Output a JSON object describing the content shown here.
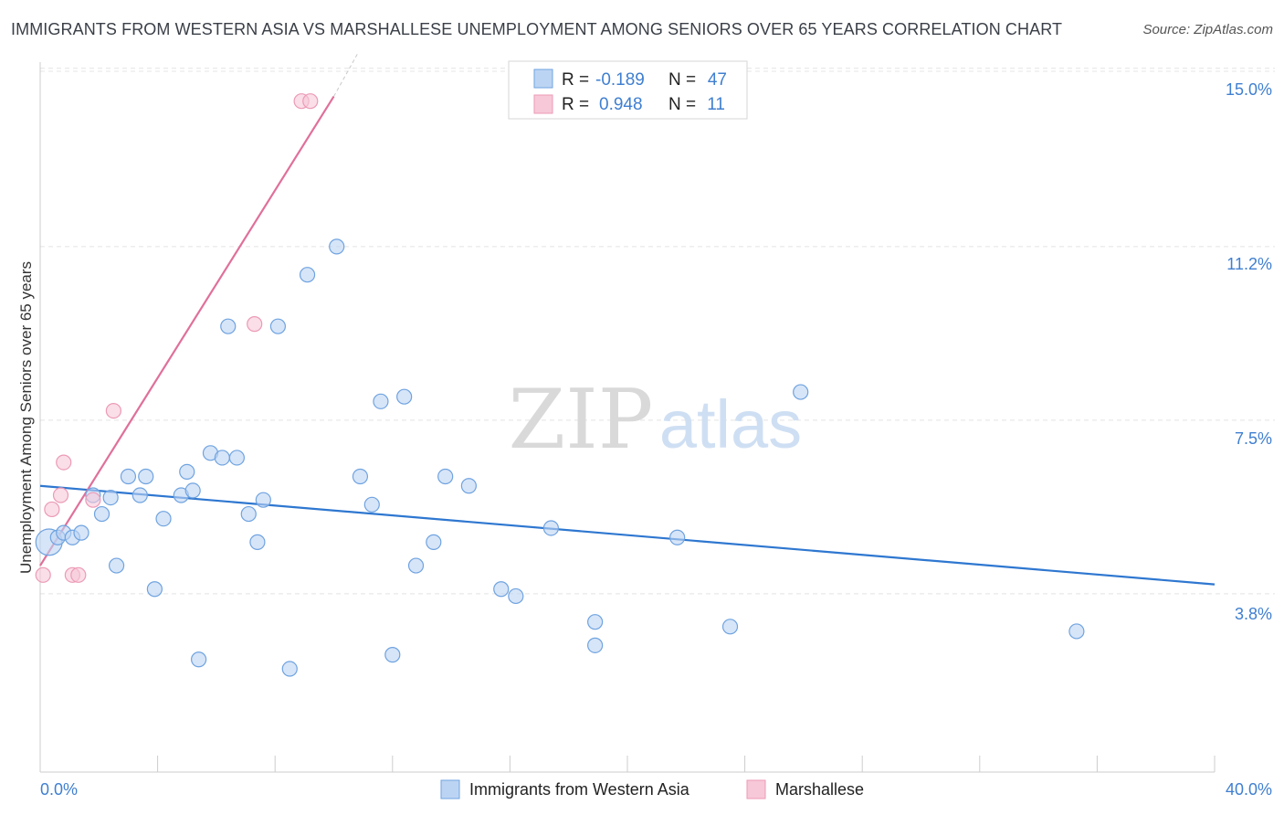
{
  "title": "IMMIGRANTS FROM WESTERN ASIA VS MARSHALLESE UNEMPLOYMENT AMONG SENIORS OVER 65 YEARS CORRELATION CHART",
  "source": "Source: ZipAtlas.com",
  "watermark": {
    "zip": "ZIP",
    "atlas": "atlas"
  },
  "legend": {
    "rows": [
      {
        "r_label": "R =",
        "r_value": "-0.189",
        "n_label": "N =",
        "n_value": "47"
      },
      {
        "r_label": "R =",
        "r_value": "0.948",
        "n_label": "N =",
        "n_value": "11"
      }
    ]
  },
  "chart_data": {
    "type": "scatter",
    "title": "IMMIGRANTS FROM WESTERN ASIA VS MARSHALLESE UNEMPLOYMENT AMONG SENIORS OVER 65 YEARS CORRELATION CHART",
    "xlabel": "",
    "ylabel": "Unemployment Among Seniors over 65 years",
    "xlim": [
      0,
      40
    ],
    "ylim": [
      0,
      15.4
    ],
    "x_tick_labels": [
      "0.0%",
      "40.0%"
    ],
    "y_ticks": [
      3.8,
      7.5,
      11.2,
      15.0
    ],
    "y_tick_labels": [
      "3.8%",
      "7.5%",
      "11.2%",
      "15.0%"
    ],
    "grid": true,
    "legend_position": "top-center",
    "series": [
      {
        "name": "Immigrants from Western Asia",
        "color": "#6fa3e0",
        "fill": "#bcd4f3",
        "line_color": "#2e77d0",
        "trend": {
          "x": [
            0,
            40
          ],
          "y": [
            6.1,
            4.0
          ]
        },
        "points": [
          [
            0.3,
            4.9,
            1.8
          ],
          [
            0.6,
            5.0,
            1.0
          ],
          [
            0.8,
            5.1,
            1.0
          ],
          [
            1.1,
            5.0,
            1.0
          ],
          [
            1.4,
            5.1,
            1.0
          ],
          [
            1.8,
            5.9,
            1.0
          ],
          [
            2.1,
            5.5,
            1.0
          ],
          [
            2.4,
            5.85,
            1.0
          ],
          [
            2.6,
            4.4,
            1.0
          ],
          [
            3.0,
            6.3,
            1.0
          ],
          [
            3.4,
            5.9,
            1.0
          ],
          [
            3.6,
            6.3,
            1.0
          ],
          [
            3.9,
            3.9,
            1.0
          ],
          [
            4.2,
            5.4,
            1.0
          ],
          [
            4.8,
            5.9,
            1.0
          ],
          [
            5.0,
            6.4,
            1.0
          ],
          [
            5.2,
            6.0,
            1.0
          ],
          [
            5.4,
            2.4,
            1.0
          ],
          [
            5.8,
            6.8,
            1.0
          ],
          [
            6.2,
            6.7,
            1.0
          ],
          [
            6.4,
            9.5,
            1.0
          ],
          [
            6.7,
            6.7,
            1.0
          ],
          [
            7.1,
            5.5,
            1.0
          ],
          [
            7.4,
            4.9,
            1.0
          ],
          [
            7.6,
            5.8,
            1.0
          ],
          [
            8.1,
            9.5,
            1.0
          ],
          [
            8.5,
            2.2,
            1.0
          ],
          [
            9.1,
            10.6,
            1.0
          ],
          [
            10.1,
            11.2,
            1.0
          ],
          [
            10.9,
            6.3,
            1.0
          ],
          [
            11.3,
            5.7,
            1.0
          ],
          [
            11.6,
            7.9,
            1.0
          ],
          [
            12.0,
            2.5,
            1.0
          ],
          [
            12.4,
            8.0,
            1.0
          ],
          [
            12.8,
            4.4,
            1.0
          ],
          [
            13.4,
            4.9,
            1.0
          ],
          [
            13.8,
            6.3,
            1.0
          ],
          [
            14.6,
            6.1,
            1.0
          ],
          [
            15.7,
            3.9,
            1.0
          ],
          [
            16.2,
            3.75,
            1.0
          ],
          [
            17.4,
            5.2,
            1.0
          ],
          [
            18.9,
            3.2,
            1.0
          ],
          [
            18.9,
            2.7,
            1.0
          ],
          [
            21.7,
            5.0,
            1.0
          ],
          [
            23.5,
            3.1,
            1.0
          ],
          [
            25.9,
            8.1,
            1.0
          ],
          [
            35.3,
            3.0,
            1.0
          ]
        ]
      },
      {
        "name": "Marshallese",
        "color": "#ec9ab6",
        "fill": "#f7c8d8",
        "line_color": "#e0709a",
        "trend": {
          "x": [
            0,
            10.0
          ],
          "y": [
            4.4,
            14.4
          ]
        },
        "trend_ext": {
          "x": [
            10.0,
            10.8
          ],
          "y": [
            14.4,
            15.3
          ]
        },
        "points": [
          [
            0.1,
            4.2
          ],
          [
            0.4,
            5.6
          ],
          [
            0.7,
            5.9
          ],
          [
            0.8,
            6.6
          ],
          [
            1.1,
            4.2
          ],
          [
            1.3,
            4.2
          ],
          [
            1.8,
            5.8
          ],
          [
            2.5,
            7.7
          ],
          [
            7.3,
            9.55
          ],
          [
            8.9,
            14.3
          ],
          [
            9.2,
            14.3
          ]
        ]
      }
    ]
  }
}
